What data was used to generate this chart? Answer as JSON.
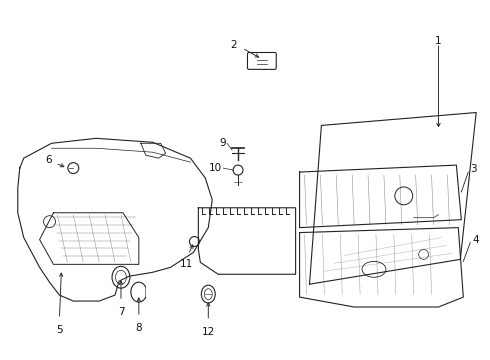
{
  "bg_color": "#ffffff",
  "line_color": "#222222",
  "label_color": "#111111",
  "figsize": [
    4.9,
    3.6
  ],
  "dpi": 100,
  "xlim": [
    0,
    490
  ],
  "ylim": [
    0,
    360
  ]
}
